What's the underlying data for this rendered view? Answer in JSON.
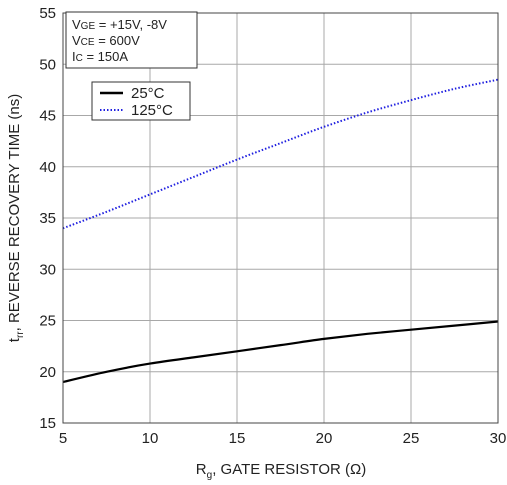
{
  "chart_data": {
    "type": "line",
    "xlabel": {
      "main": "R",
      "sub": "g",
      "rest": ", GATE RESISTOR (Ω)"
    },
    "ylabel": {
      "main": "t",
      "sub": "rr",
      "rest": ", REVERSE RECOVERY TIME (ns)"
    },
    "xlim": [
      5,
      30
    ],
    "ylim": [
      15,
      55
    ],
    "xticks": [
      5,
      10,
      15,
      20,
      25,
      30
    ],
    "yticks": [
      15,
      20,
      25,
      30,
      35,
      40,
      45,
      50,
      55
    ],
    "grid": true,
    "conditions": [
      {
        "main": "V",
        "sub": "GE",
        "rest": " = +15V, -8V"
      },
      {
        "main": "V",
        "sub": "CE",
        "rest": " = 600V"
      },
      {
        "main": "I",
        "sub": "C",
        "rest": " = 150A"
      }
    ],
    "legend_position": "top-left",
    "series": [
      {
        "name": "25°C",
        "style": "solid",
        "color": "#000000",
        "x": [
          5,
          7.5,
          10,
          12.5,
          15,
          17.5,
          20,
          22.5,
          25,
          27.5,
          30
        ],
        "y": [
          19.0,
          20.0,
          20.8,
          21.4,
          22.0,
          22.6,
          23.2,
          23.7,
          24.1,
          24.5,
          24.9
        ]
      },
      {
        "name": "125°C",
        "style": "dotted",
        "color": "#1f1fe0",
        "x": [
          5,
          7.5,
          10,
          12.5,
          15,
          17.5,
          20,
          22.5,
          25,
          27.5,
          30
        ],
        "y": [
          34.0,
          35.6,
          37.3,
          39.0,
          40.7,
          42.3,
          43.9,
          45.3,
          46.5,
          47.6,
          48.5
        ]
      }
    ]
  }
}
